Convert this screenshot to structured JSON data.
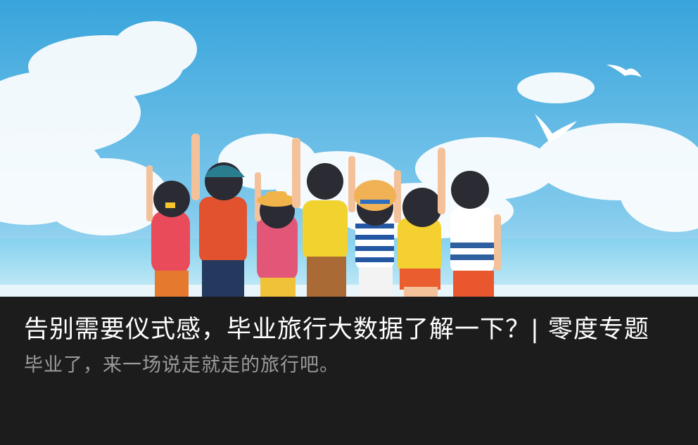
{
  "article": {
    "title": "告别需要仪式感，毕业旅行大数据了解一下？| 零度专题",
    "subtitle": "毕业了，来一场说走就走的旅行吧。"
  },
  "hero_image": {
    "subject": "graduation-friends-at-beach-illustration"
  },
  "colors": {
    "caption_background": "#1c1c1c",
    "title_text": "#ffffff",
    "subtitle_text": "#9b9b9b",
    "sky_top": "#3aa7dc",
    "sky_bottom": "#9fd7f0",
    "sea": "#7ccbea"
  }
}
